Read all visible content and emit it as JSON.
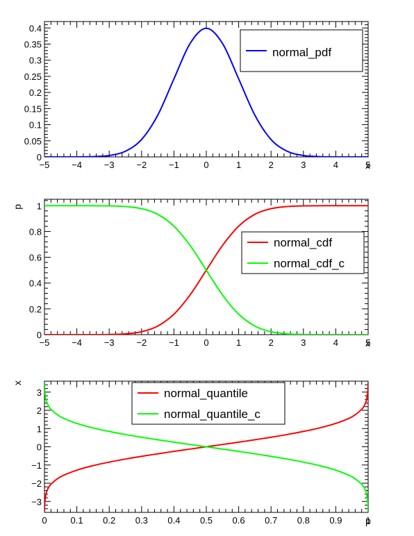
{
  "chart_data": [
    {
      "type": "line",
      "title": "",
      "xlabel": "x",
      "ylabel": "",
      "xlim": [
        -5,
        5
      ],
      "ylim": [
        0,
        0.42
      ],
      "xticks": [
        -5,
        -4,
        -3,
        -2,
        -1,
        0,
        1,
        2,
        3,
        4,
        5
      ],
      "xtick_labels": [
        "−5",
        "−4",
        "−3",
        "−2",
        "−1",
        "0",
        "1",
        "2",
        "3",
        "4",
        "5"
      ],
      "yticks": [
        0,
        0.05,
        0.1,
        0.15,
        0.2,
        0.25,
        0.3,
        0.35,
        0.4
      ],
      "ytick_labels": [
        "0",
        "0.05",
        "0.1",
        "0.15",
        "0.2",
        "0.25",
        "0.3",
        "0.35",
        "0.4"
      ],
      "grid": false,
      "legend_position": "top-right",
      "series": [
        {
          "name": "normal_pdf",
          "color": "#0000ff",
          "x": [
            -5,
            -4.5,
            -4,
            -3.5,
            -3,
            -2.5,
            -2,
            -1.5,
            -1,
            -0.5,
            0,
            0.5,
            1,
            1.5,
            2,
            2.5,
            3,
            3.5,
            4,
            4.5,
            5
          ],
          "y": [
            0.0,
            0.0,
            0.0001,
            0.0009,
            0.0044,
            0.0175,
            0.054,
            0.1295,
            0.242,
            0.3521,
            0.3989,
            0.3521,
            0.242,
            0.1295,
            0.054,
            0.0175,
            0.0044,
            0.0009,
            0.0001,
            0.0,
            0.0
          ]
        }
      ]
    },
    {
      "type": "line",
      "title": "",
      "xlabel": "x",
      "ylabel": "p",
      "xlim": [
        -5,
        5
      ],
      "ylim": [
        0,
        1.05
      ],
      "xticks": [
        -5,
        -4,
        -3,
        -2,
        -1,
        0,
        1,
        2,
        3,
        4,
        5
      ],
      "xtick_labels": [
        "−5",
        "−4",
        "−3",
        "−2",
        "−1",
        "0",
        "1",
        "2",
        "3",
        "4",
        "5"
      ],
      "yticks": [
        0,
        0.2,
        0.4,
        0.6,
        0.8,
        1
      ],
      "ytick_labels": [
        "0",
        "0.2",
        "0.4",
        "0.6",
        "0.8",
        "1"
      ],
      "grid": false,
      "legend_position": "right",
      "series": [
        {
          "name": "normal_cdf",
          "color": "#ff0000",
          "x": [
            -5,
            -4.5,
            -4,
            -3.5,
            -3,
            -2.5,
            -2,
            -1.5,
            -1,
            -0.5,
            0,
            0.5,
            1,
            1.5,
            2,
            2.5,
            3,
            3.5,
            4,
            4.5,
            5
          ],
          "y": [
            0.0,
            0.0,
            0.0,
            0.0002,
            0.0013,
            0.0062,
            0.0228,
            0.0668,
            0.1587,
            0.3085,
            0.5,
            0.6915,
            0.8413,
            0.9332,
            0.9772,
            0.9938,
            0.9987,
            0.9998,
            1.0,
            1.0,
            1.0
          ]
        },
        {
          "name": "normal_cdf_c",
          "color": "#00ff00",
          "x": [
            -5,
            -4.5,
            -4,
            -3.5,
            -3,
            -2.5,
            -2,
            -1.5,
            -1,
            -0.5,
            0,
            0.5,
            1,
            1.5,
            2,
            2.5,
            3,
            3.5,
            4,
            4.5,
            5
          ],
          "y": [
            1.0,
            1.0,
            1.0,
            0.9998,
            0.9987,
            0.9938,
            0.9772,
            0.9332,
            0.8413,
            0.6915,
            0.5,
            0.3085,
            0.1587,
            0.0668,
            0.0228,
            0.0062,
            0.0013,
            0.0002,
            0.0,
            0.0,
            0.0
          ]
        }
      ]
    },
    {
      "type": "line",
      "title": "",
      "xlabel": "p",
      "ylabel": "x",
      "xlim": [
        0,
        1
      ],
      "ylim": [
        -3.6,
        3.6
      ],
      "xticks": [
        0,
        0.1,
        0.2,
        0.3,
        0.4,
        0.5,
        0.6,
        0.7,
        0.8,
        0.9,
        1
      ],
      "xtick_labels": [
        "0",
        "0.1",
        "0.2",
        "0.3",
        "0.4",
        "0.5",
        "0.6",
        "0.7",
        "0.8",
        "0.9",
        "1"
      ],
      "yticks": [
        -3,
        -2,
        -1,
        0,
        1,
        2,
        3
      ],
      "ytick_labels": [
        "−3",
        "−2",
        "−1",
        "0",
        "1",
        "2",
        "3"
      ],
      "grid": false,
      "legend_position": "top-center",
      "series": [
        {
          "name": "normal_quantile",
          "color": "#ff0000",
          "x": [
            0.0002,
            0.001,
            0.005,
            0.01,
            0.02,
            0.05,
            0.1,
            0.15,
            0.2,
            0.25,
            0.3,
            0.35,
            0.4,
            0.45,
            0.5,
            0.55,
            0.6,
            0.65,
            0.7,
            0.75,
            0.8,
            0.85,
            0.9,
            0.95,
            0.98,
            0.99,
            0.995,
            0.999,
            0.9998
          ],
          "y": [
            -3.54,
            -3.09,
            -2.576,
            -2.326,
            -2.054,
            -1.645,
            -1.282,
            -1.036,
            -0.842,
            -0.674,
            -0.524,
            -0.385,
            -0.253,
            -0.126,
            0.0,
            0.126,
            0.253,
            0.385,
            0.524,
            0.674,
            0.842,
            1.036,
            1.282,
            1.645,
            2.054,
            2.326,
            2.576,
            3.09,
            3.54
          ]
        },
        {
          "name": "normal_quantile_c",
          "color": "#00ff00",
          "x": [
            0.0002,
            0.001,
            0.005,
            0.01,
            0.02,
            0.05,
            0.1,
            0.15,
            0.2,
            0.25,
            0.3,
            0.35,
            0.4,
            0.45,
            0.5,
            0.55,
            0.6,
            0.65,
            0.7,
            0.75,
            0.8,
            0.85,
            0.9,
            0.95,
            0.98,
            0.99,
            0.995,
            0.999,
            0.9998
          ],
          "y": [
            3.54,
            3.09,
            2.576,
            2.326,
            2.054,
            1.645,
            1.282,
            1.036,
            0.842,
            0.674,
            0.524,
            0.385,
            0.253,
            0.126,
            0.0,
            -0.126,
            -0.253,
            -0.385,
            -0.524,
            -0.674,
            -0.842,
            -1.036,
            -1.282,
            -1.645,
            -2.054,
            -2.326,
            -2.576,
            -3.09,
            -3.54
          ]
        }
      ]
    }
  ]
}
